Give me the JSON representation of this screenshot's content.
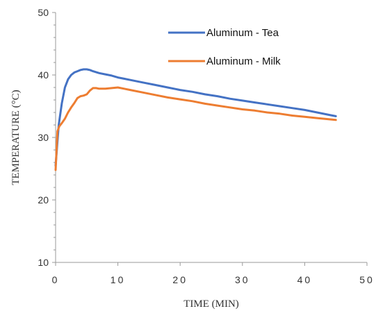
{
  "chart_data": {
    "type": "line",
    "title": "",
    "xlabel": "TIME (MIN)",
    "ylabel": "TEMPERATURE (°C)",
    "xlim": [
      0,
      50
    ],
    "ylim": [
      10,
      50
    ],
    "x_ticks": [
      0,
      10,
      20,
      30,
      40,
      50
    ],
    "y_ticks": [
      10,
      20,
      30,
      40,
      50
    ],
    "x_tick_labels": [
      "0",
      "10",
      "20",
      "30",
      "40",
      "50"
    ],
    "y_tick_labels": [
      "10",
      "20",
      "30",
      "40",
      "50"
    ],
    "grid": false,
    "legend_position": "top-right",
    "series": [
      {
        "name": "Aluminum - Tea",
        "color": "#4472C4",
        "x": [
          0,
          0.5,
          1,
          1.5,
          2,
          2.5,
          3,
          3.5,
          4,
          4.5,
          5,
          5.5,
          6,
          7,
          8,
          9,
          10,
          11,
          12,
          14,
          16,
          18,
          20,
          22,
          24,
          26,
          28,
          30,
          32,
          34,
          36,
          38,
          40,
          42,
          44,
          45
        ],
        "y": [
          25.5,
          32,
          35.5,
          38,
          39.3,
          40,
          40.4,
          40.6,
          40.8,
          40.9,
          40.9,
          40.8,
          40.6,
          40.3,
          40.1,
          39.9,
          39.6,
          39.4,
          39.2,
          38.8,
          38.4,
          38,
          37.6,
          37.3,
          36.9,
          36.6,
          36.2,
          35.9,
          35.6,
          35.3,
          35,
          34.7,
          34.4,
          34,
          33.6,
          33.4
        ]
      },
      {
        "name": "Aluminum - Milk",
        "color": "#ED7D31",
        "x": [
          0,
          0.3,
          0.6,
          1,
          1.5,
          2,
          2.5,
          3,
          3.5,
          4,
          4.5,
          5,
          5.5,
          6,
          6.5,
          7,
          8,
          9,
          10,
          11,
          12,
          14,
          16,
          18,
          20,
          22,
          24,
          26,
          28,
          30,
          32,
          34,
          36,
          38,
          40,
          42,
          44,
          45
        ],
        "y": [
          24.8,
          31,
          31.8,
          32.3,
          33,
          34,
          34.8,
          35.5,
          36.3,
          36.6,
          36.7,
          36.9,
          37.5,
          37.9,
          37.9,
          37.8,
          37.8,
          37.9,
          38,
          37.8,
          37.6,
          37.2,
          36.8,
          36.4,
          36.1,
          35.8,
          35.4,
          35.1,
          34.8,
          34.5,
          34.3,
          34,
          33.8,
          33.5,
          33.3,
          33.1,
          32.9,
          32.8
        ]
      }
    ]
  }
}
